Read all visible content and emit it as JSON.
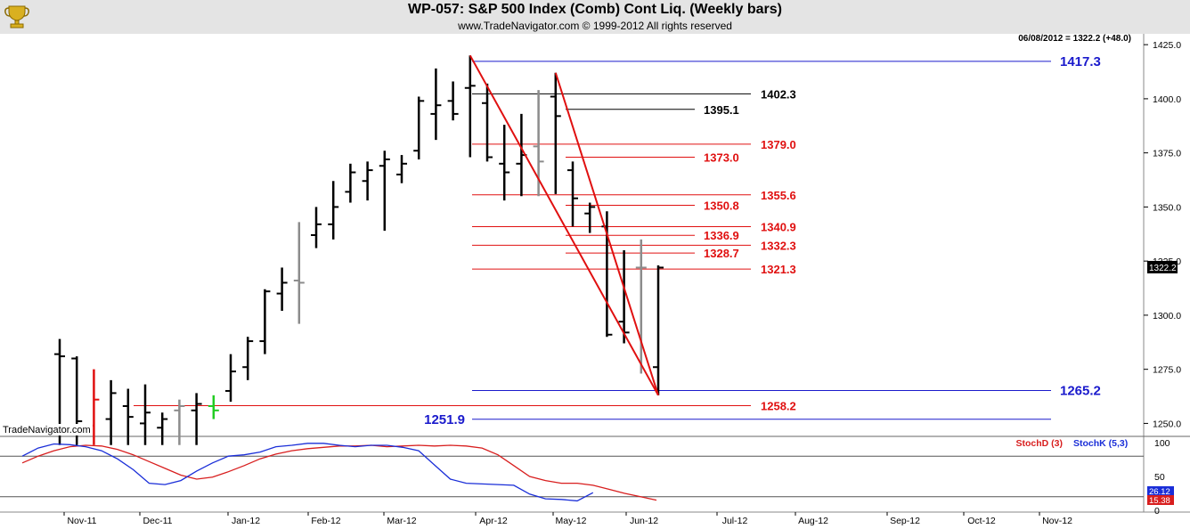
{
  "header": {
    "title": "WP-057:  S&P 500 Index (Comb) Cont Liq.  (Weekly bars)",
    "subtitle": "www.TradeNavigator.com © 1999-2012 All rights reserved"
  },
  "chart_data": [
    {
      "type": "ohlc",
      "readout": "06/08/2012 = 1322.2 (+48.0)",
      "last_price_label": "1322.2",
      "watermark": "TradeNavigator.com",
      "ylim": [
        1244,
        1430
      ],
      "y_ticks": [
        "1425.0",
        "1400.0",
        "1375.0",
        "1350.0",
        "1325.0",
        "1300.0",
        "1275.0",
        "1250.0"
      ],
      "x_ticks": [
        "Nov-11",
        "Dec-11",
        "Jan-12",
        "Feb-12",
        "Mar-12",
        "Apr-12",
        "May-12",
        "Jun-12",
        "Jul-12",
        "Aug-12",
        "Sep-12",
        "Oct-12",
        "Nov-12"
      ],
      "bars": [
        {
          "h": 1289,
          "l": 1240,
          "o": 1282,
          "c": 1281,
          "color": "black"
        },
        {
          "h": 1281,
          "l": 1240,
          "o": 1280,
          "c": 1251,
          "color": "black"
        },
        {
          "h": 1275,
          "l": 1240,
          "o": 1249,
          "c": 1261,
          "color": "red"
        },
        {
          "h": 1270,
          "l": 1240,
          "o": 1252,
          "c": 1264,
          "color": "black"
        },
        {
          "h": 1266,
          "l": 1240,
          "o": 1258,
          "c": 1253,
          "color": "black"
        },
        {
          "h": 1268,
          "l": 1240,
          "o": 1250,
          "c": 1255,
          "color": "black"
        },
        {
          "h": 1255,
          "l": 1240,
          "o": 1248,
          "c": 1252,
          "color": "black"
        },
        {
          "h": 1261,
          "l": 1240,
          "o": 1256,
          "c": 1258,
          "color": "gray"
        },
        {
          "h": 1264,
          "l": 1240,
          "o": 1256,
          "c": 1259,
          "color": "black"
        },
        {
          "h": 1263,
          "l": 1252,
          "o": 1258,
          "c": 1256,
          "color": "green"
        },
        {
          "h": 1282,
          "l": 1260,
          "o": 1265,
          "c": 1274,
          "color": "black"
        },
        {
          "h": 1290,
          "l": 1270,
          "o": 1276,
          "c": 1288,
          "color": "black"
        },
        {
          "h": 1312,
          "l": 1282,
          "o": 1288,
          "c": 1311,
          "color": "black"
        },
        {
          "h": 1322,
          "l": 1302,
          "o": 1310,
          "c": 1315,
          "color": "black"
        },
        {
          "h": 1343,
          "l": 1296,
          "o": 1316,
          "c": 1315,
          "color": "gray"
        },
        {
          "h": 1350,
          "l": 1331,
          "o": 1337,
          "c": 1342,
          "color": "black"
        },
        {
          "h": 1362,
          "l": 1335,
          "o": 1342,
          "c": 1350,
          "color": "black"
        },
        {
          "h": 1370,
          "l": 1352,
          "o": 1357,
          "c": 1366,
          "color": "black"
        },
        {
          "h": 1371,
          "l": 1353,
          "o": 1362,
          "c": 1367,
          "color": "black"
        },
        {
          "h": 1376,
          "l": 1339,
          "o": 1369,
          "c": 1372,
          "color": "black"
        },
        {
          "h": 1374,
          "l": 1361,
          "o": 1365,
          "c": 1370,
          "color": "black"
        },
        {
          "h": 1401,
          "l": 1372,
          "o": 1376,
          "c": 1399,
          "color": "black"
        },
        {
          "h": 1414,
          "l": 1381,
          "o": 1393,
          "c": 1397,
          "color": "black"
        },
        {
          "h": 1408,
          "l": 1390,
          "o": 1399,
          "c": 1393,
          "color": "black"
        },
        {
          "h": 1420,
          "l": 1373,
          "o": 1405,
          "c": 1406,
          "color": "black"
        },
        {
          "h": 1407,
          "l": 1371,
          "o": 1398,
          "c": 1373,
          "color": "black"
        },
        {
          "h": 1388,
          "l": 1353,
          "o": 1370,
          "c": 1366,
          "color": "black"
        },
        {
          "h": 1393,
          "l": 1355,
          "o": 1370,
          "c": 1374,
          "color": "black"
        },
        {
          "h": 1404,
          "l": 1355,
          "o": 1378,
          "c": 1371,
          "color": "gray"
        },
        {
          "h": 1412,
          "l": 1356,
          "o": 1401,
          "c": 1392,
          "color": "black"
        },
        {
          "h": 1371,
          "l": 1341,
          "o": 1367,
          "c": 1354,
          "color": "black"
        },
        {
          "h": 1352,
          "l": 1338,
          "o": 1347,
          "c": 1350,
          "color": "black"
        },
        {
          "h": 1348,
          "l": 1290,
          "o": 1341,
          "c": 1291,
          "color": "black"
        },
        {
          "h": 1330,
          "l": 1287,
          "o": 1297,
          "c": 1292,
          "color": "black"
        },
        {
          "h": 1335,
          "l": 1273,
          "o": 1322,
          "c": 1322,
          "color": "gray"
        },
        {
          "h": 1323,
          "l": 1263,
          "o": 1276,
          "c": 1322,
          "color": "black"
        }
      ],
      "levels": [
        {
          "value": 1417.3,
          "label": "1417.3",
          "color": "blue",
          "label_side": "right"
        },
        {
          "value": 1402.3,
          "label": "1402.3",
          "color": "black",
          "label_side": "mid"
        },
        {
          "value": 1395.1,
          "label": "1395.1",
          "color": "black",
          "label_side": "inner"
        },
        {
          "value": 1379.0,
          "label": "1379.0",
          "color": "red",
          "label_side": "mid"
        },
        {
          "value": 1373.0,
          "label": "1373.0",
          "color": "red",
          "label_side": "inner"
        },
        {
          "value": 1355.6,
          "label": "1355.6",
          "color": "red",
          "label_side": "mid"
        },
        {
          "value": 1350.8,
          "label": "1350.8",
          "color": "red",
          "label_side": "inner"
        },
        {
          "value": 1340.9,
          "label": "1340.9",
          "color": "red",
          "label_side": "mid"
        },
        {
          "value": 1336.9,
          "label": "1336.9",
          "color": "red",
          "label_side": "inner"
        },
        {
          "value": 1332.3,
          "label": "1332.3",
          "color": "red",
          "label_side": "mid"
        },
        {
          "value": 1328.7,
          "label": "1328.7",
          "color": "red",
          "label_side": "inner"
        },
        {
          "value": 1321.3,
          "label": "1321.3",
          "color": "red",
          "label_side": "mid"
        },
        {
          "value": 1265.2,
          "label": "1265.2",
          "color": "blue",
          "label_side": "right"
        },
        {
          "value": 1258.2,
          "label": "1258.2",
          "color": "red",
          "label_side": "mid"
        },
        {
          "value": 1251.9,
          "label": "1251.9",
          "color": "blue",
          "label_side": "left"
        }
      ],
      "trendlines": [
        {
          "from": [
            24,
            1420
          ],
          "to": [
            35,
            1263
          ]
        },
        {
          "from": [
            29,
            1412
          ],
          "to": [
            35,
            1263
          ]
        }
      ]
    },
    {
      "type": "line",
      "legend": [
        "StochD (3)",
        "StochK (5,3)"
      ],
      "ylim": [
        0,
        100
      ],
      "y_ticks": [
        "100",
        "50",
        "0"
      ],
      "stoch_d_label": "15.38",
      "stoch_k_label": "26.12",
      "series": [
        {
          "name": "StochD (3)",
          "color": "#d81e1e",
          "values": [
            70,
            80,
            88,
            94,
            96,
            95,
            90,
            82,
            72,
            62,
            52,
            46,
            49,
            57,
            66,
            76,
            83,
            88,
            91,
            93,
            95,
            95,
            96,
            94,
            95,
            96,
            95,
            96,
            95,
            92,
            82,
            66,
            50,
            44,
            40,
            40,
            37,
            31,
            25,
            20,
            15
          ]
        },
        {
          "name": "StochK (5,3)",
          "color": "#1a2ed8",
          "values": [
            80,
            92,
            98,
            97,
            94,
            88,
            76,
            60,
            40,
            38,
            44,
            58,
            70,
            80,
            82,
            86,
            94,
            96,
            99,
            99,
            96,
            94,
            96,
            96,
            93,
            88,
            67,
            46,
            40,
            39,
            38,
            37,
            24,
            17,
            16,
            14,
            26
          ]
        }
      ]
    }
  ]
}
